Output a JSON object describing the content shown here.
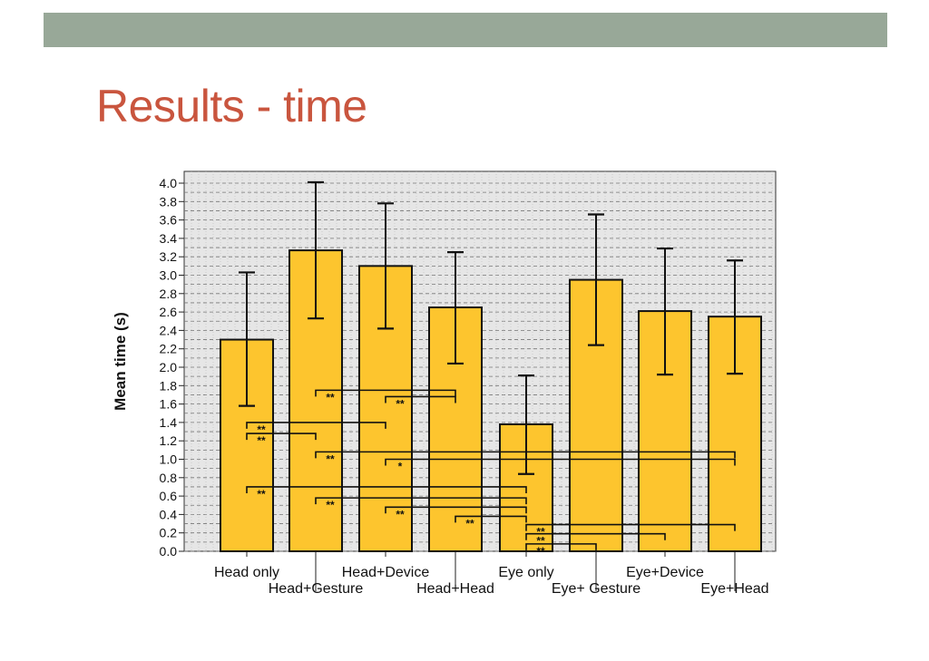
{
  "slide": {
    "title": "Results - time",
    "colors": {
      "band": "#98a898",
      "title": "#c9553e",
      "bar": "#fdc52e",
      "bar_edge": "#111111"
    }
  },
  "chart_data": {
    "type": "bar",
    "ylabel": "Mean time (s)",
    "xlabel": "",
    "ylim": [
      0,
      4.0
    ],
    "yticks": [
      "0.0",
      "0.2",
      "0.4",
      "0.6",
      "0.8",
      "1.0",
      "1.2",
      "1.4",
      "1.6",
      "1.8",
      "2.0",
      "2.2",
      "2.4",
      "2.6",
      "2.8",
      "3.0",
      "3.2",
      "3.4",
      "3.6",
      "3.8",
      "4.0"
    ],
    "grid": true,
    "categories": [
      "Head only",
      "Head+Gesture",
      "Head+Device",
      "Head+Head",
      "Eye only",
      "Eye+ Gesture",
      "Eye+Device",
      "Eye+Head"
    ],
    "values": [
      2.3,
      3.27,
      3.1,
      2.65,
      1.38,
      2.95,
      2.61,
      2.55
    ],
    "error_low": [
      1.58,
      2.53,
      2.42,
      2.04,
      0.84,
      2.24,
      1.92,
      1.93
    ],
    "error_high": [
      3.03,
      4.01,
      3.78,
      3.25,
      1.91,
      3.66,
      3.29,
      3.16
    ],
    "significance": [
      {
        "from": "Head+Gesture",
        "to": "Head+Head",
        "y": 1.75,
        "label": "**"
      },
      {
        "from": "Head+Device",
        "to": "Head+Head",
        "y": 1.68,
        "label": "**"
      },
      {
        "from": "Head only",
        "to": "Head+Device",
        "y": 1.4,
        "label": "**"
      },
      {
        "from": "Head only",
        "to": "Head+Gesture",
        "y": 1.28,
        "label": "**"
      },
      {
        "from": "Head+Gesture",
        "to": "Eye+Head",
        "y": 1.08,
        "label": "**"
      },
      {
        "from": "Head+Device",
        "to": "Eye+Head",
        "y": 1.0,
        "label": "*"
      },
      {
        "from": "Head only",
        "to": "Eye only",
        "y": 0.7,
        "label": "**"
      },
      {
        "from": "Head+Gesture",
        "to": "Eye only",
        "y": 0.58,
        "label": "**"
      },
      {
        "from": "Head+Device",
        "to": "Eye only",
        "y": 0.48,
        "label": "**"
      },
      {
        "from": "Head+Head",
        "to": "Eye only",
        "y": 0.38,
        "label": "**"
      },
      {
        "from": "Eye only",
        "to": "Eye+Head",
        "y": 0.29,
        "label": "**"
      },
      {
        "from": "Eye only",
        "to": "Eye+Device",
        "y": 0.19,
        "label": "**"
      },
      {
        "from": "Eye only",
        "to": "Eye+ Gesture",
        "y": 0.08,
        "label": "**"
      }
    ]
  }
}
